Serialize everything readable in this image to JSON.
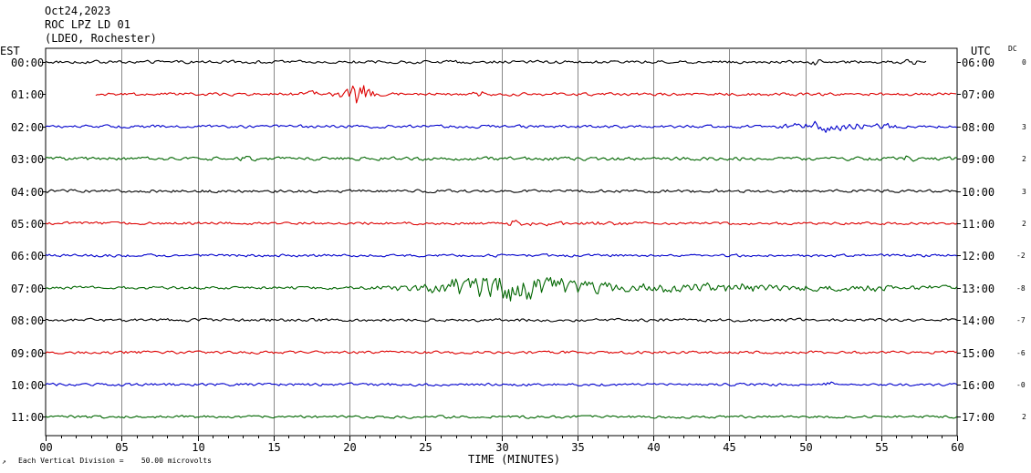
{
  "header": {
    "date": "Oct24,2023",
    "station": "ROC LPZ LD 01",
    "network": "(LDEO, Rochester)"
  },
  "left_zone": "EST",
  "right_zone": "UTC",
  "dc_label": "DC",
  "footer": {
    "xlabel": "TIME (MINUTES)",
    "scale_note": "Each Vertical Division =    50.00 microvolts"
  },
  "colors": {
    "trace_cycle": [
      "#000000",
      "#dd0000",
      "#0000cc",
      "#006600"
    ],
    "grid": "#888888"
  },
  "chart_data": {
    "type": "line",
    "title": "",
    "xlabel": "TIME (MINUTES)",
    "xlim": [
      0,
      60
    ],
    "x_ticks": [
      "00",
      "05",
      "10",
      "15",
      "20",
      "25",
      "30",
      "35",
      "40",
      "45",
      "50",
      "55",
      "60"
    ],
    "grid": true,
    "rows": [
      {
        "est": "00:00",
        "utc": "06:00",
        "dc": "0",
        "start": 0,
        "end": 58,
        "amp": 2.2,
        "events": [
          {
            "t": 50.8,
            "w": 0.6,
            "a": 4
          },
          {
            "t": 57,
            "w": 0.6,
            "a": 4
          }
        ]
      },
      {
        "est": "01:00",
        "utc": "07:00",
        "dc": "",
        "start": 3.3,
        "end": 60,
        "amp": 2.2,
        "events": [
          {
            "t": 17.5,
            "w": 2,
            "a": 4
          },
          {
            "t": 20.3,
            "w": 0.7,
            "a": 18
          },
          {
            "t": 21.1,
            "w": 0.6,
            "a": 12
          },
          {
            "t": 29,
            "w": 1.2,
            "a": 3
          }
        ]
      },
      {
        "est": "02:00",
        "utc": "08:00",
        "dc": "3",
        "start": 0,
        "end": 60,
        "amp": 2.2,
        "events": [
          {
            "t": 51.5,
            "w": 2.5,
            "a": 8
          },
          {
            "t": 55.5,
            "w": 1.5,
            "a": 4
          }
        ]
      },
      {
        "est": "03:00",
        "utc": "09:00",
        "dc": "2",
        "start": 0,
        "end": 60,
        "amp": 2.5,
        "events": [
          {
            "t": 13.2,
            "w": 0.4,
            "a": 4
          },
          {
            "t": 56.8,
            "w": 0.4,
            "a": 5
          }
        ]
      },
      {
        "est": "04:00",
        "utc": "10:00",
        "dc": "3",
        "start": 0,
        "end": 60,
        "amp": 2.2,
        "events": []
      },
      {
        "est": "05:00",
        "utc": "11:00",
        "dc": "2",
        "start": 0,
        "end": 60,
        "amp": 2.0,
        "events": [
          {
            "t": 31.5,
            "w": 1.8,
            "a": 4
          },
          {
            "t": 36.5,
            "w": 2.5,
            "a": 3
          }
        ]
      },
      {
        "est": "06:00",
        "utc": "12:00",
        "dc": "-2",
        "start": 0,
        "end": 60,
        "amp": 2.0,
        "events": []
      },
      {
        "est": "07:00",
        "utc": "13:00",
        "dc": "-8",
        "start": 0,
        "end": 60,
        "amp": 2.2,
        "events": [
          {
            "t": 25,
            "w": 2.5,
            "a": 5
          },
          {
            "t": 29.5,
            "w": 3,
            "a": 19
          },
          {
            "t": 34,
            "w": 4,
            "a": 10
          },
          {
            "t": 42,
            "w": 6,
            "a": 7
          },
          {
            "t": 53,
            "w": 8,
            "a": 4
          }
        ]
      },
      {
        "est": "08:00",
        "utc": "14:00",
        "dc": "-7",
        "start": 0,
        "end": 60,
        "amp": 2.2,
        "events": []
      },
      {
        "est": "09:00",
        "utc": "15:00",
        "dc": "-6",
        "start": 0,
        "end": 60,
        "amp": 2.0,
        "events": []
      },
      {
        "est": "10:00",
        "utc": "16:00",
        "dc": "-0",
        "start": 0,
        "end": 60,
        "amp": 2.0,
        "events": [
          {
            "t": 51.5,
            "w": 0.5,
            "a": 3
          }
        ]
      },
      {
        "est": "11:00",
        "utc": "17:00",
        "dc": "2",
        "start": 0,
        "end": 60,
        "amp": 2.0,
        "events": []
      }
    ]
  }
}
